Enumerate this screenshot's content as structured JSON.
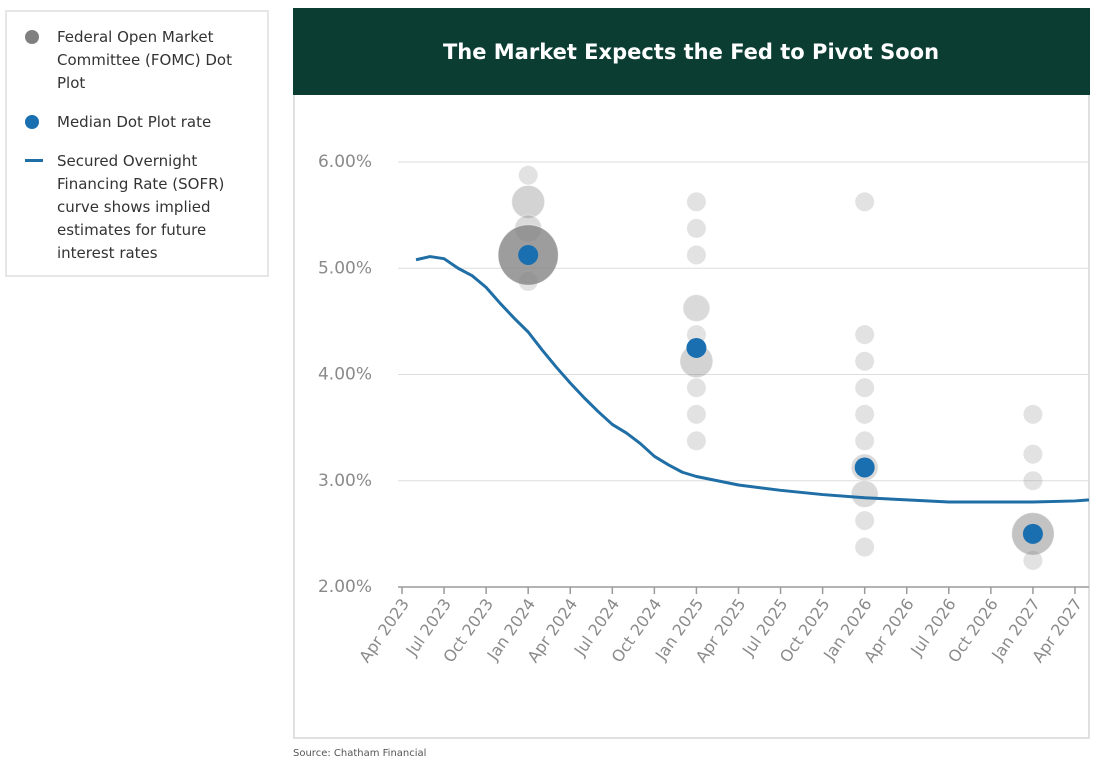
{
  "chart_data": {
    "type": "combo",
    "title": "The Market Expects the Fed to Pivot Soon",
    "source": "Source: Chatham Financial",
    "ylim": [
      2,
      6
    ],
    "yticks": [
      {
        "value": 2,
        "label": "2.00%"
      },
      {
        "value": 3,
        "label": "3.00%"
      },
      {
        "value": 4,
        "label": "4.00%"
      },
      {
        "value": 5,
        "label": "5.00%"
      },
      {
        "value": 6,
        "label": "6.00%"
      }
    ],
    "xlim": [
      "2023-04",
      "2027-05"
    ],
    "xticks": [
      {
        "value": "2023-04",
        "label": "Apr 2023"
      },
      {
        "value": "2023-07",
        "label": "Jul 2023"
      },
      {
        "value": "2023-10",
        "label": "Oct 2023"
      },
      {
        "value": "2024-01",
        "label": "Jan 2024"
      },
      {
        "value": "2024-04",
        "label": "Apr 2024"
      },
      {
        "value": "2024-07",
        "label": "Jul 2024"
      },
      {
        "value": "2024-10",
        "label": "Oct 2024"
      },
      {
        "value": "2025-01",
        "label": "Jan 2025"
      },
      {
        "value": "2025-04",
        "label": "Apr 2025"
      },
      {
        "value": "2025-07",
        "label": "Jul 2025"
      },
      {
        "value": "2025-10",
        "label": "Oct 2025"
      },
      {
        "value": "2026-01",
        "label": "Jan 2026"
      },
      {
        "value": "2026-04",
        "label": "Apr 2026"
      },
      {
        "value": "2026-07",
        "label": "Jul 2026"
      },
      {
        "value": "2026-10",
        "label": "Oct 2026"
      },
      {
        "value": "2027-01",
        "label": "Jan 2027"
      },
      {
        "value": "2027-04",
        "label": "Apr 2027"
      }
    ],
    "grid": true,
    "series": [
      {
        "name": "Federal Open Market Committee (FOMC) Dot Plot",
        "type": "scatter",
        "color": "#808080",
        "x": [
          "2024-01",
          "2024-01",
          "2024-01",
          "2024-01",
          "2024-01",
          "2025-01",
          "2025-01",
          "2025-01",
          "2025-01",
          "2025-01",
          "2025-01",
          "2025-01",
          "2025-01",
          "2025-01",
          "2026-01",
          "2026-01",
          "2026-01",
          "2026-01",
          "2026-01",
          "2026-01",
          "2026-01",
          "2026-01",
          "2026-01",
          "2026-01",
          "2027-01",
          "2027-01",
          "2027-01",
          "2027-01",
          "2027-01"
        ],
        "values": [
          5.875,
          5.625,
          5.375,
          5.125,
          4.875,
          5.625,
          5.375,
          5.125,
          4.625,
          4.375,
          4.125,
          3.875,
          3.625,
          3.375,
          5.625,
          4.375,
          4.125,
          3.875,
          3.625,
          3.375,
          3.125,
          2.875,
          2.625,
          2.375,
          3.625,
          3.25,
          3.0,
          2.5,
          2.25
        ],
        "sizes": [
          1,
          3,
          2,
          10,
          1,
          1,
          1,
          1,
          2,
          1,
          3,
          1,
          1,
          1,
          1,
          1,
          1,
          1,
          1,
          1,
          2,
          2,
          1,
          1,
          1,
          1,
          1,
          5,
          1
        ]
      },
      {
        "name": "Median Dot Plot rate",
        "type": "scatter",
        "color": "#1a6fb0",
        "x": [
          "2024-01",
          "2025-01",
          "2026-01",
          "2027-01"
        ],
        "values": [
          5.125,
          4.25,
          3.125,
          2.5
        ]
      },
      {
        "name": "Secured Overnight Financing Rate (SOFR) curve shows implied estimates for future interest rates",
        "type": "line",
        "color": "#1f6ea6",
        "x": [
          "2023-05",
          "2023-06",
          "2023-07",
          "2023-08",
          "2023-09",
          "2023-10",
          "2023-11",
          "2023-12",
          "2024-01",
          "2024-02",
          "2024-03",
          "2024-04",
          "2024-05",
          "2024-06",
          "2024-07",
          "2024-08",
          "2024-09",
          "2024-10",
          "2024-11",
          "2024-12",
          "2025-01",
          "2025-04",
          "2025-07",
          "2025-10",
          "2026-01",
          "2026-04",
          "2026-07",
          "2026-10",
          "2027-01",
          "2027-04",
          "2027-05"
        ],
        "values": [
          5.08,
          5.11,
          5.09,
          5.0,
          4.93,
          4.82,
          4.67,
          4.53,
          4.4,
          4.23,
          4.07,
          3.92,
          3.78,
          3.65,
          3.53,
          3.45,
          3.35,
          3.23,
          3.15,
          3.08,
          3.04,
          2.96,
          2.91,
          2.87,
          2.84,
          2.82,
          2.8,
          2.8,
          2.8,
          2.81,
          2.82
        ]
      }
    ]
  }
}
